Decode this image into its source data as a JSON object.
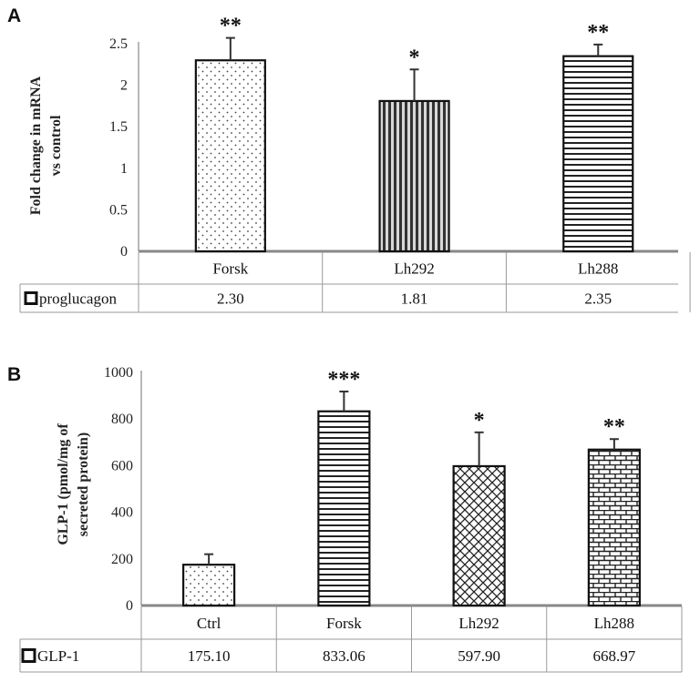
{
  "chart_data": [
    {
      "type": "bar",
      "panel": "A",
      "ylabel_lines": [
        "Fold change in mRNA",
        "vs control"
      ],
      "yticks": [
        "0",
        "0.5",
        "1",
        "1.5",
        "2",
        "2.5"
      ],
      "ylim": [
        0,
        2.5
      ],
      "categories": [
        "Forsk",
        "Lh292",
        "Lh288"
      ],
      "series": [
        {
          "name": "proglucagon",
          "values": [
            2.3,
            1.81,
            2.35
          ],
          "errors": [
            0.27,
            0.38,
            0.14
          ],
          "value_labels": [
            "2.30",
            "1.81",
            "2.35"
          ],
          "significance": [
            "**",
            "*",
            "**"
          ],
          "patterns": [
            "dots",
            "vstripes",
            "hstripes"
          ]
        }
      ],
      "data_table": true,
      "grid": false
    },
    {
      "type": "bar",
      "panel": "B",
      "ylabel_lines": [
        "GLP-1 (pmol/mg of",
        "secreted protein)"
      ],
      "yticks": [
        "0",
        "200",
        "400",
        "600",
        "800",
        "1000"
      ],
      "ylim": [
        0,
        1000
      ],
      "categories": [
        "Ctrl",
        "Forsk",
        "Lh292",
        "Lh288"
      ],
      "series": [
        {
          "name": "GLP-1",
          "values": [
            175.1,
            833.06,
            597.9,
            668.97
          ],
          "errors": [
            45,
            85,
            145,
            45
          ],
          "value_labels": [
            "175.10",
            "833.06",
            "597.90",
            "668.97"
          ],
          "significance": [
            "",
            "***",
            "*",
            "**"
          ],
          "patterns": [
            "dots",
            "hstripes",
            "crosshatch",
            "bricks"
          ]
        }
      ],
      "data_table": true,
      "grid": false
    }
  ]
}
